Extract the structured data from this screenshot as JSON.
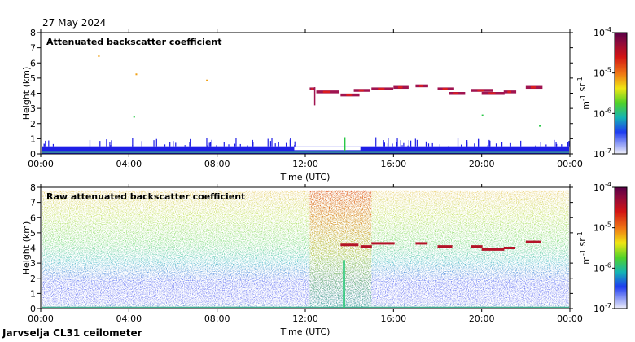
{
  "date_label": "27 May 2024",
  "footer_label": "Jarvselja CL31 ceilometer",
  "chart_data": [
    {
      "type": "heatmap",
      "title": "Attenuated backscatter coefficient",
      "xlabel": "Time (UTC)",
      "ylabel": "Height (km)",
      "xticks": [
        "00:00",
        "04:00",
        "08:00",
        "12:00",
        "16:00",
        "20:00",
        "00:00"
      ],
      "xlim": [
        0,
        24
      ],
      "ylim": [
        0,
        8
      ],
      "yticks": [
        "0",
        "1",
        "2",
        "3",
        "4",
        "5",
        "6",
        "7",
        "8"
      ],
      "colorbar": {
        "ticks": [
          "10-4",
          "10-5",
          "10-6",
          "10-7"
        ],
        "units": "m-1 sr-1"
      },
      "cloud_layer_km": [
        [
          12.2,
          4.3
        ],
        [
          12.5,
          4.1
        ],
        [
          13.6,
          3.9
        ],
        [
          14.2,
          4.2
        ],
        [
          15.0,
          4.3
        ],
        [
          16.0,
          4.4
        ],
        [
          17.0,
          4.5
        ],
        [
          18.0,
          4.3
        ],
        [
          18.5,
          4.0
        ],
        [
          19.5,
          4.2
        ],
        [
          20.0,
          4.0
        ],
        [
          21.0,
          4.1
        ],
        [
          22.0,
          4.4
        ]
      ],
      "boundary_layer_top_km": 0.5
    },
    {
      "type": "heatmap",
      "title": "Raw attenuated backscatter coefficient",
      "xlabel": "Time (UTC)",
      "ylabel": "Height (km)",
      "xticks": [
        "00:00",
        "04:00",
        "08:00",
        "12:00",
        "16:00",
        "20:00",
        "00:00"
      ],
      "xlim": [
        0,
        24
      ],
      "ylim": [
        0,
        8
      ],
      "yticks": [
        "0",
        "1",
        "2",
        "3",
        "4",
        "5",
        "6",
        "7",
        "8"
      ],
      "colorbar": {
        "ticks": [
          "10-4",
          "10-5",
          "10-6",
          "10-7"
        ],
        "units": "m-1 sr-1"
      },
      "cloud_layer_km": [
        [
          13.6,
          4.2
        ],
        [
          14.5,
          4.1
        ],
        [
          15.0,
          4.3
        ],
        [
          17.0,
          4.3
        ],
        [
          18.0,
          4.1
        ],
        [
          19.5,
          4.1
        ],
        [
          20.0,
          3.9
        ],
        [
          21.0,
          4.0
        ],
        [
          22.0,
          4.4
        ]
      ],
      "noise_block_hours": [
        12.2,
        15.0
      ]
    }
  ],
  "colors": {
    "background": "#ffffff",
    "low_signal": "#1e1ee6",
    "ground_layer": "#3caa8c",
    "cloud": "#a01450",
    "noise_high": "#e64614"
  }
}
